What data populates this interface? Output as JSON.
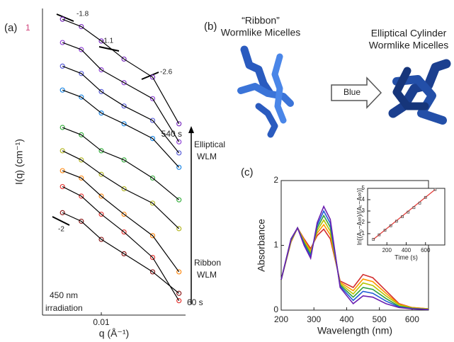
{
  "chart_data": [
    {
      "type": "line",
      "panel_label": "(a)",
      "panel_mark": "1",
      "xlabel": "q (Å⁻¹)",
      "ylabel": "I(q) (cm⁻¹)",
      "xscale": "log",
      "xlim": [
        0.0035,
        0.045
      ],
      "xticks": [
        0.01
      ],
      "ylim": [
        0,
        100
      ],
      "markers": true,
      "line_color": "#000000",
      "x": [
        0.005,
        0.007,
        0.01,
        0.015,
        0.025,
        0.04
      ],
      "series": [
        {
          "color": "#7b2fbf",
          "values": [
            96.5,
            94.1,
            89.4,
            83.5,
            77.6,
            62.4
          ]
        },
        {
          "color": "#9146d6",
          "values": [
            88.9,
            86.6,
            80,
            75.8,
            70.6,
            56.5
          ]
        },
        {
          "color": "#5a5fd8",
          "values": [
            81.2,
            78.8,
            72.9,
            68.2,
            63.5,
            52.9
          ]
        },
        {
          "color": "#1e88e5",
          "values": [
            73.4,
            71.1,
            65.9,
            62.4,
            57.6,
            48.2
          ]
        },
        {
          "color": "#3cb043",
          "values": [
            61.2,
            58.8,
            53.6,
            50.6,
            44.7,
            37.6
          ]
        },
        {
          "color": "#b5b82a",
          "values": [
            53.6,
            50.6,
            45.9,
            41.2,
            36.5,
            28.2
          ]
        },
        {
          "color": "#ff8c1a",
          "values": [
            47.1,
            44.7,
            38.8,
            32.9,
            25.9,
            14.1
          ]
        },
        {
          "color": "#e53935",
          "values": [
            41.9,
            38.8,
            32.9,
            27.1,
            18.8,
            4.7
          ]
        },
        {
          "color": "#8b1a1a",
          "values": [
            33.4,
            30.6,
            24.7,
            20,
            14.1,
            7.1
          ]
        }
      ],
      "annotations": [
        "-1.8",
        "-1.1",
        "-2.6",
        "-2",
        "540 s",
        "Elliptical",
        "WLM",
        "Ribbon",
        "WLM",
        "60 s",
        "450 nm",
        "irradiation"
      ]
    },
    {
      "type": "line",
      "panel_label": "(c)",
      "xlabel": "Wavelength (nm)",
      "ylabel": "Absorbance",
      "xlim": [
        200,
        650
      ],
      "xticks": [
        200,
        300,
        400,
        500,
        600
      ],
      "ylim": [
        0,
        2
      ],
      "yticks": [
        0,
        1,
        2
      ],
      "x": [
        200,
        230,
        250,
        270,
        290,
        310,
        330,
        350,
        380,
        420,
        450,
        480,
        520,
        560,
        600,
        650
      ],
      "series": [
        {
          "color": "#d32f2f",
          "values": [
            0.47,
            1.05,
            1.27,
            1.1,
            0.95,
            1.15,
            1.25,
            1.1,
            0.45,
            0.35,
            0.55,
            0.5,
            0.3,
            0.1,
            0.04,
            0.02
          ]
        },
        {
          "color": "#ff9800",
          "values": [
            0.47,
            1.06,
            1.27,
            1.08,
            0.92,
            1.19,
            1.32,
            1.16,
            0.43,
            0.3,
            0.48,
            0.44,
            0.26,
            0.09,
            0.04,
            0.02
          ]
        },
        {
          "color": "#b8c400",
          "values": [
            0.47,
            1.07,
            1.27,
            1.06,
            0.89,
            1.23,
            1.39,
            1.22,
            0.41,
            0.25,
            0.42,
            0.38,
            0.22,
            0.08,
            0.03,
            0.02
          ]
        },
        {
          "color": "#2e9e3e",
          "values": [
            0.47,
            1.08,
            1.27,
            1.04,
            0.86,
            1.27,
            1.46,
            1.28,
            0.39,
            0.2,
            0.35,
            0.32,
            0.18,
            0.06,
            0.03,
            0.01
          ]
        },
        {
          "color": "#1e5bd6",
          "values": [
            0.47,
            1.09,
            1.27,
            1.02,
            0.83,
            1.31,
            1.53,
            1.34,
            0.37,
            0.15,
            0.29,
            0.26,
            0.14,
            0.05,
            0.02,
            0.01
          ]
        },
        {
          "color": "#6a1fb0",
          "values": [
            0.47,
            1.1,
            1.27,
            1.0,
            0.8,
            1.35,
            1.6,
            1.4,
            0.35,
            0.1,
            0.22,
            0.2,
            0.1,
            0.04,
            0.02,
            0.01
          ]
        }
      ]
    },
    {
      "type": "scatter",
      "xlabel": "Time (s)",
      "ylabel": "ln[(A₀−A∞)/(Aₜ−A∞)]",
      "xlim": [
        0,
        800
      ],
      "xticks": [
        200,
        400,
        600
      ],
      "ylim": [
        0,
        5
      ],
      "yticks": [
        1,
        2,
        3,
        4,
        5
      ],
      "x": [
        60,
        120,
        180,
        240,
        300,
        360,
        420,
        480,
        540,
        600,
        700
      ],
      "values": [
        0.5,
        0.9,
        1.3,
        1.7,
        2.1,
        2.5,
        2.9,
        3.3,
        3.7,
        4.2,
        4.9
      ],
      "color": "#555555",
      "fit_color": "#e53935"
    }
  ],
  "diagram": {
    "panel_label": "(b)",
    "left_title": "“Ribbon”",
    "left_subtitle": "Wormlike Micelles",
    "right_title": "Elliptical Cylinder",
    "right_subtitle": "Wormlike Micelles",
    "arrow_label": "Blue"
  }
}
